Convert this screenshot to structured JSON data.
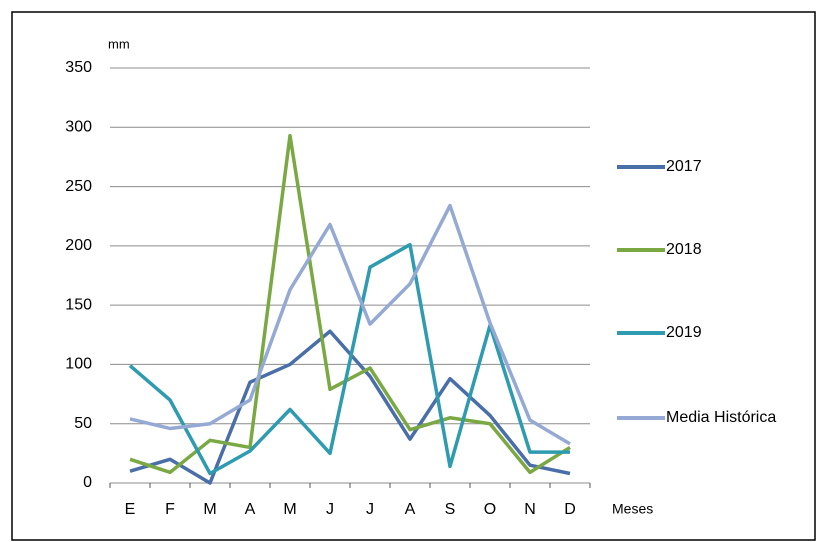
{
  "chart_data": {
    "type": "line",
    "y_axis_label": "mm",
    "x_axis_label": "Meses",
    "categories": [
      "E",
      "F",
      "M",
      "A",
      "M",
      "J",
      "J",
      "A",
      "S",
      "O",
      "N",
      "D"
    ],
    "series": [
      {
        "name": "2017",
        "color": "#4a6ea8",
        "values": [
          10,
          20,
          0,
          85,
          100,
          128,
          90,
          37,
          88,
          57,
          15,
          8
        ]
      },
      {
        "name": "2018",
        "color": "#7aa842",
        "values": [
          20,
          9,
          36,
          30,
          293,
          79,
          97,
          45,
          55,
          50,
          9,
          30
        ]
      },
      {
        "name": "2019",
        "color": "#2f9bb0",
        "values": [
          99,
          70,
          8,
          27,
          62,
          25,
          182,
          201,
          14,
          133,
          26,
          26
        ]
      },
      {
        "name": "Media Histórica",
        "color": "#95a9d5",
        "values": [
          54,
          46,
          50,
          70,
          163,
          218,
          134,
          168,
          234,
          135,
          53,
          33
        ]
      }
    ],
    "ylim": [
      0,
      350
    ],
    "yticks": [
      0,
      50,
      100,
      150,
      200,
      250,
      300,
      350
    ],
    "grid": true
  }
}
